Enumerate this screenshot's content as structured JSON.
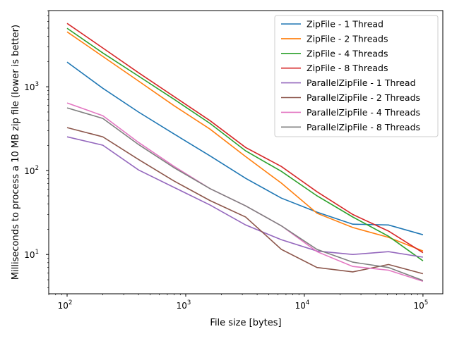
{
  "chart_data": {
    "type": "line",
    "title": "",
    "xlabel": "File size [bytes]",
    "ylabel": "Milliseconds to process a 10 MB zip file (lower is better)",
    "xscale": "log",
    "yscale": "log",
    "xlim": [
      70,
      147000
    ],
    "ylim": [
      3.4,
      8100
    ],
    "xticks": [
      {
        "value": 100,
        "base": "10",
        "exp": "2"
      },
      {
        "value": 1000,
        "base": "10",
        "exp": "3"
      },
      {
        "value": 10000,
        "base": "10",
        "exp": "4"
      },
      {
        "value": 100000,
        "base": "10",
        "exp": "5"
      }
    ],
    "yticks": [
      {
        "value": 10,
        "base": "10",
        "exp": "1"
      },
      {
        "value": 100,
        "base": "10",
        "exp": "2"
      },
      {
        "value": 1000,
        "base": "10",
        "exp": "3"
      }
    ],
    "legend_position": "top-right",
    "grid": false,
    "x": [
      100,
      200,
      400,
      800,
      1600,
      3200,
      6400,
      12800,
      25600,
      51200,
      100000
    ],
    "series": [
      {
        "name": "ZipFile - 1 Thread",
        "color": "#1f77b4",
        "values": [
          1970,
          960,
          500,
          273,
          150,
          81,
          47,
          32,
          23,
          22.5,
          17.2
        ]
      },
      {
        "name": "ZipFile - 2 Threads",
        "color": "#ff7f0e",
        "values": [
          4520,
          2300,
          1170,
          593,
          313,
          147,
          71,
          31,
          21,
          16,
          11
        ]
      },
      {
        "name": "ZipFile - 4 Threads",
        "color": "#2ca02c",
        "values": [
          4980,
          2530,
          1340,
          706,
          366,
          172,
          98,
          50,
          28,
          16.5,
          8.4
        ]
      },
      {
        "name": "ZipFile - 8 Threads",
        "color": "#d62728",
        "values": [
          5700,
          2900,
          1470,
          762,
          395,
          189,
          112,
          56,
          30,
          19,
          10.5
        ]
      },
      {
        "name": "ParallelZipFile - 1 Thread",
        "color": "#9467bd",
        "values": [
          253,
          201,
          102,
          63,
          39,
          22.5,
          15,
          11,
          10,
          10.8,
          9.3
        ]
      },
      {
        "name": "ParallelZipFile - 2 Threads",
        "color": "#8c564b",
        "values": [
          326,
          253,
          136,
          75,
          44,
          28,
          11.5,
          7,
          6.2,
          7.6,
          5.9
        ]
      },
      {
        "name": "ParallelZipFile - 4 Threads",
        "color": "#e377c2",
        "values": [
          641,
          452,
          217,
          112,
          61,
          38,
          22,
          10.8,
          7.2,
          6.5,
          4.8
        ]
      },
      {
        "name": "ParallelZipFile - 8 Threads",
        "color": "#7f7f7f",
        "values": [
          560,
          419,
          205,
          108,
          61,
          38,
          22,
          11.5,
          8.1,
          7,
          4.9
        ]
      }
    ]
  }
}
